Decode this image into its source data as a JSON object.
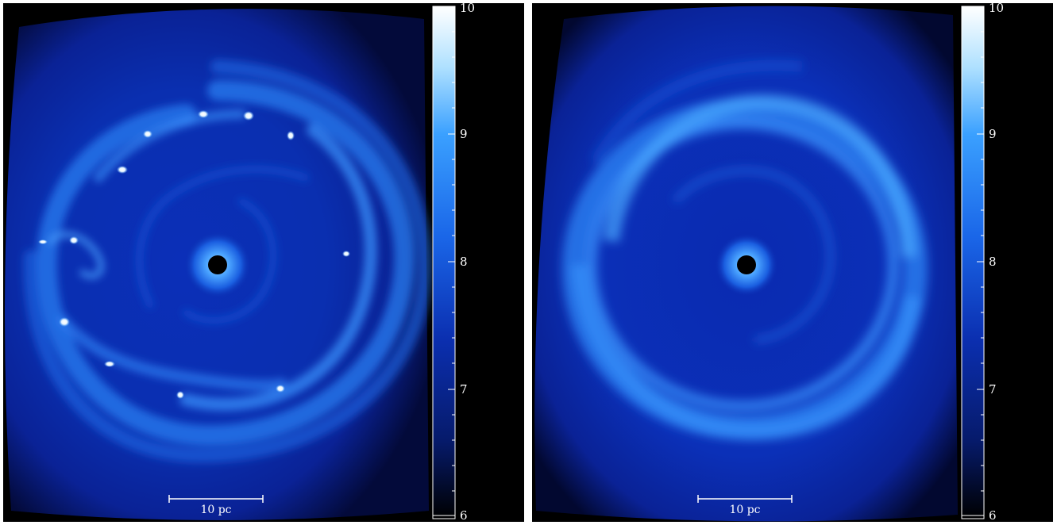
{
  "panels": [
    {
      "id": "left",
      "scale_bar_label": "10 pc",
      "colorbar_ticks": [
        "10",
        "9",
        "8",
        "7",
        "6"
      ]
    },
    {
      "id": "right",
      "scale_bar_label": "10 pc",
      "colorbar_ticks": [
        "10",
        "9",
        "8",
        "7",
        "6"
      ]
    }
  ],
  "colors": {
    "background": "#000000",
    "deep_blue": "#0a1a8a",
    "mid_blue": "#1e5fe0",
    "bright_blue": "#4aa0ff",
    "white": "#ffffff"
  }
}
